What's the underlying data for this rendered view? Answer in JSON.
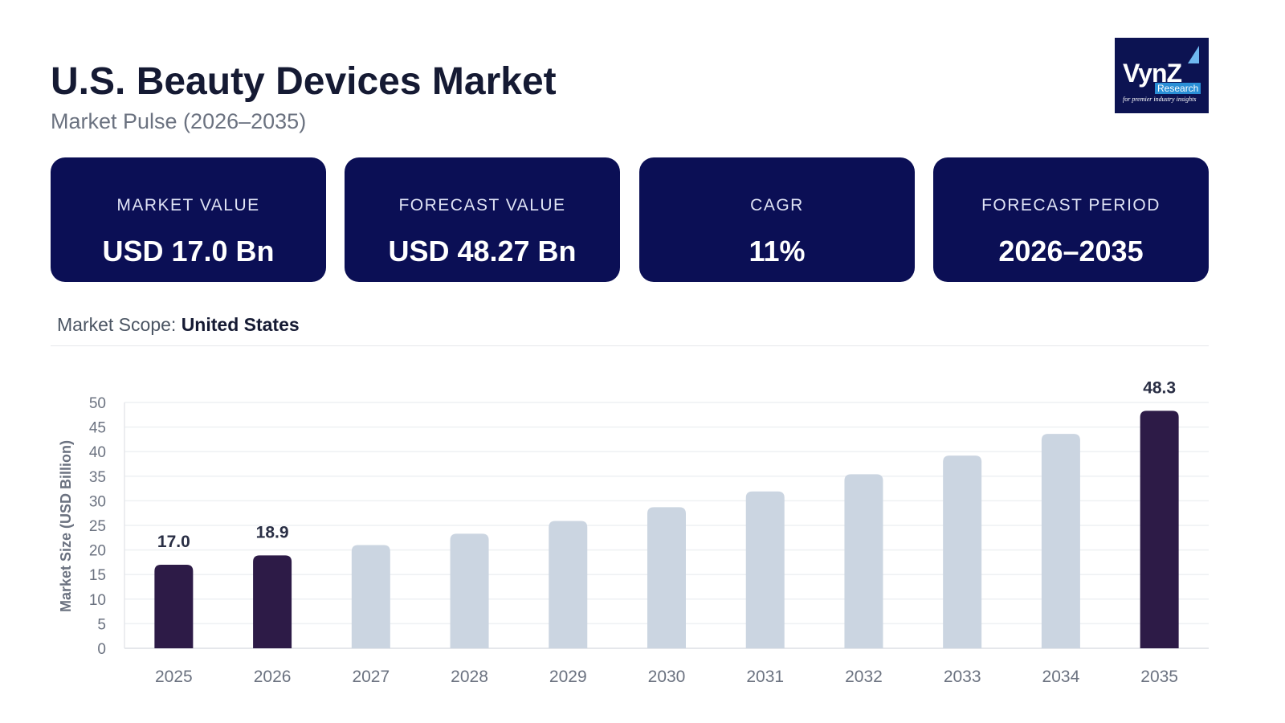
{
  "header": {
    "title": "U.S. Beauty Devices Market",
    "subtitle": "Market Pulse (2026–2035)"
  },
  "logo": {
    "text": "VynZ",
    "sub": "Research",
    "tagline": "for premier industry insights",
    "bg": "#0c1352"
  },
  "cards": [
    {
      "label": "MARKET VALUE",
      "value": "USD 17.0 Bn"
    },
    {
      "label": "FORECAST VALUE",
      "value": "USD 48.27 Bn"
    },
    {
      "label": "CAGR",
      "value": "11%"
    },
    {
      "label": "FORECAST PERIOD",
      "value": "2026–2035"
    }
  ],
  "scope": {
    "label": "Market Scope:",
    "value": "United States"
  },
  "chart_data": {
    "type": "bar",
    "ylabel": "Market Size (USD Billion)",
    "ylim": [
      0,
      50
    ],
    "yticks": [
      0,
      5,
      10,
      15,
      20,
      25,
      30,
      35,
      40,
      45,
      50
    ],
    "grid": true,
    "categories": [
      "2025",
      "2026",
      "2027",
      "2028",
      "2029",
      "2030",
      "2031",
      "2032",
      "2033",
      "2034",
      "2035"
    ],
    "values": [
      17.0,
      18.9,
      21.0,
      23.3,
      25.9,
      28.7,
      31.9,
      35.4,
      39.2,
      43.6,
      48.3
    ],
    "data_labels": {
      "0": "17.0",
      "1": "18.9",
      "10": "48.3"
    },
    "colors": {
      "highlight": "#2d1b47",
      "default": "#cbd5e1",
      "grid": "#eef0f3",
      "axis": "#e5e7eb",
      "tick": "#6b7280"
    },
    "highlighted": [
      0,
      1,
      10
    ]
  }
}
